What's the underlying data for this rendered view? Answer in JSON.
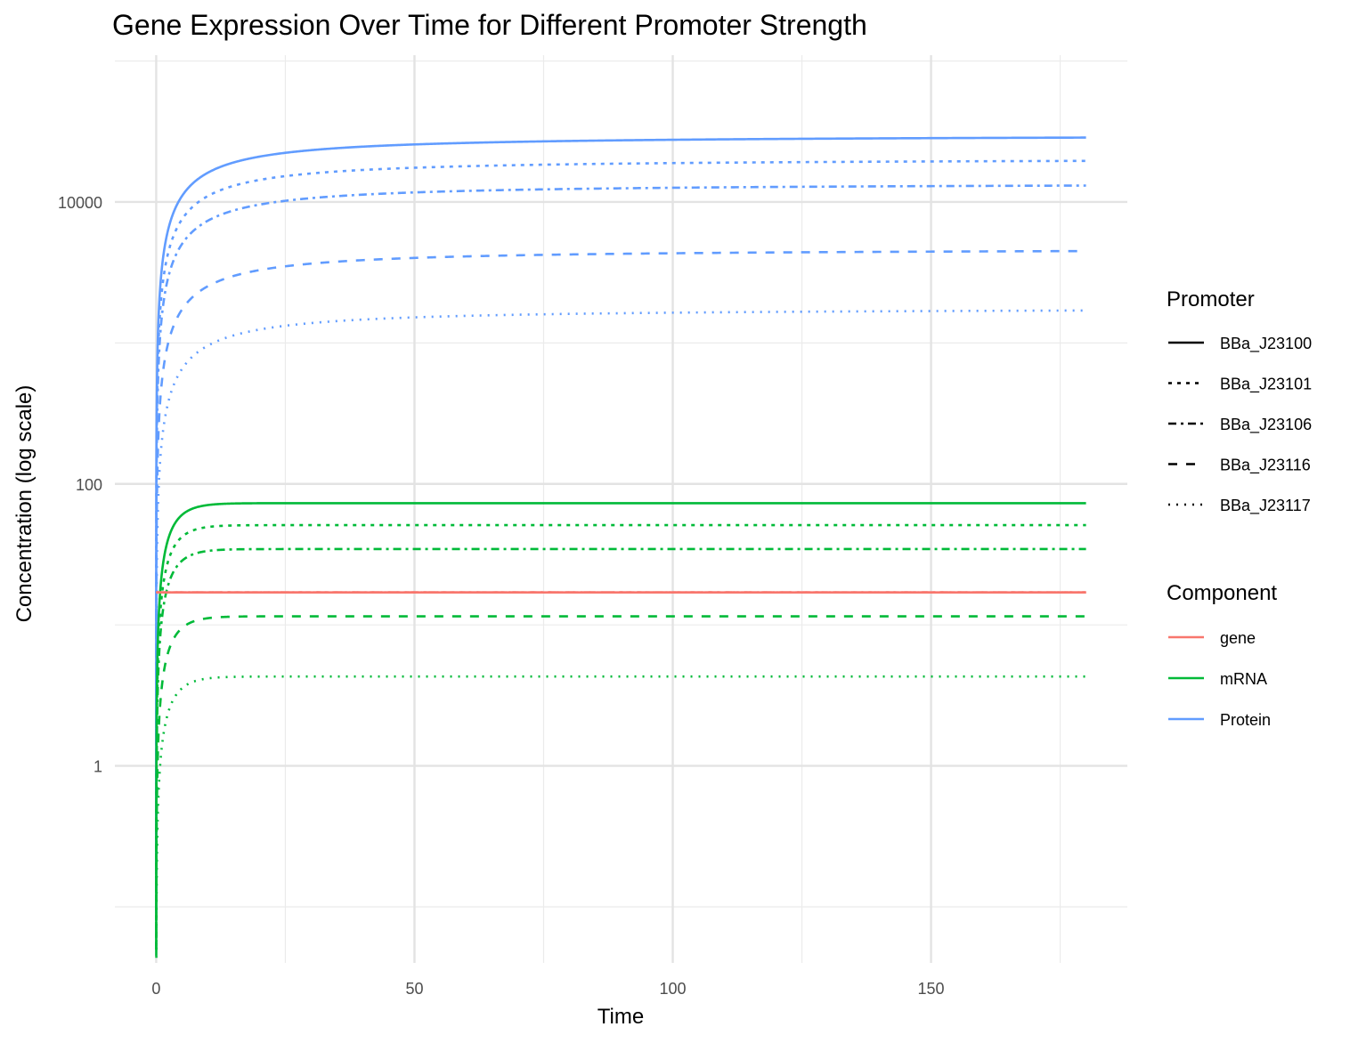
{
  "chart_data": {
    "type": "line",
    "title": "Gene Expression Over Time for Different Promoter Strength",
    "xlabel": "Time",
    "ylabel": "Concentration (log scale)",
    "x_scale": "linear",
    "y_scale": "log10",
    "xlim": [
      -8,
      188
    ],
    "ylim": [
      0.04,
      110000
    ],
    "x_ticks": [
      0,
      50,
      100,
      150
    ],
    "x_tick_labels": [
      "0",
      "50",
      "100",
      "150"
    ],
    "y_ticks": [
      1,
      100,
      10000
    ],
    "y_tick_labels": [
      "1",
      "100",
      "10000"
    ],
    "grid": true,
    "legend_position": "right",
    "promoter_legend": {
      "title": "Promoter",
      "entries": [
        {
          "label": "BBa_J23100",
          "linetype": "solid"
        },
        {
          "label": "BBa_J23101",
          "linetype": "dotted-short"
        },
        {
          "label": "BBa_J23106",
          "linetype": "dashdot"
        },
        {
          "label": "BBa_J23116",
          "linetype": "dashed"
        },
        {
          "label": "BBa_J23117",
          "linetype": "dotted"
        }
      ]
    },
    "component_legend": {
      "title": "Component",
      "entries": [
        {
          "label": "gene",
          "color": "#F8766D"
        },
        {
          "label": "mRNA",
          "color": "#00BA38"
        },
        {
          "label": "Protein",
          "color": "#619CFF"
        }
      ]
    },
    "x_range": [
      0,
      180
    ],
    "series": [
      {
        "component": "gene",
        "promoter": "BBa_J23100",
        "color": "#F8766D",
        "linetype": "solid",
        "steady_state": 17,
        "initial": 17,
        "rate": 0
      },
      {
        "component": "gene",
        "promoter": "BBa_J23101",
        "color": "#F8766D",
        "linetype": "dotted-short",
        "steady_state": 17,
        "initial": 17,
        "rate": 0
      },
      {
        "component": "gene",
        "promoter": "BBa_J23106",
        "color": "#F8766D",
        "linetype": "dashdot",
        "steady_state": 17,
        "initial": 17,
        "rate": 0
      },
      {
        "component": "gene",
        "promoter": "BBa_J23116",
        "color": "#F8766D",
        "linetype": "dashed",
        "steady_state": 17,
        "initial": 17,
        "rate": 0
      },
      {
        "component": "gene",
        "promoter": "BBa_J23117",
        "color": "#F8766D",
        "linetype": "dotted",
        "steady_state": 17,
        "initial": 17,
        "rate": 0
      },
      {
        "component": "mRNA",
        "promoter": "BBa_J23100",
        "color": "#00BA38",
        "linetype": "solid",
        "steady_state": 73,
        "rate": 0.35
      },
      {
        "component": "mRNA",
        "promoter": "BBa_J23101",
        "color": "#00BA38",
        "linetype": "dotted-short",
        "steady_state": 51,
        "rate": 0.35
      },
      {
        "component": "mRNA",
        "promoter": "BBa_J23106",
        "color": "#00BA38",
        "linetype": "dashdot",
        "steady_state": 34.5,
        "rate": 0.35
      },
      {
        "component": "mRNA",
        "promoter": "BBa_J23116",
        "color": "#00BA38",
        "linetype": "dashed",
        "steady_state": 11.5,
        "rate": 0.35
      },
      {
        "component": "mRNA",
        "promoter": "BBa_J23117",
        "color": "#00BA38",
        "linetype": "dotted",
        "steady_state": 4.3,
        "rate": 0.35
      },
      {
        "component": "Protein",
        "promoter": "BBa_J23100",
        "color": "#619CFF",
        "linetype": "solid",
        "steady_state": 30000,
        "half_time": 8.6
      },
      {
        "component": "Protein",
        "promoter": "BBa_J23101",
        "color": "#619CFF",
        "linetype": "dotted-short",
        "steady_state": 20500,
        "half_time": 8.6
      },
      {
        "component": "Protein",
        "promoter": "BBa_J23106",
        "color": "#619CFF",
        "linetype": "dashdot",
        "steady_state": 13700,
        "half_time": 8.6
      },
      {
        "component": "Protein",
        "promoter": "BBa_J23116",
        "color": "#619CFF",
        "linetype": "dashed",
        "steady_state": 4700,
        "half_time": 8.6
      },
      {
        "component": "Protein",
        "promoter": "BBa_J23117",
        "color": "#619CFF",
        "linetype": "dotted",
        "steady_state": 1780,
        "half_time": 8.6
      }
    ]
  }
}
